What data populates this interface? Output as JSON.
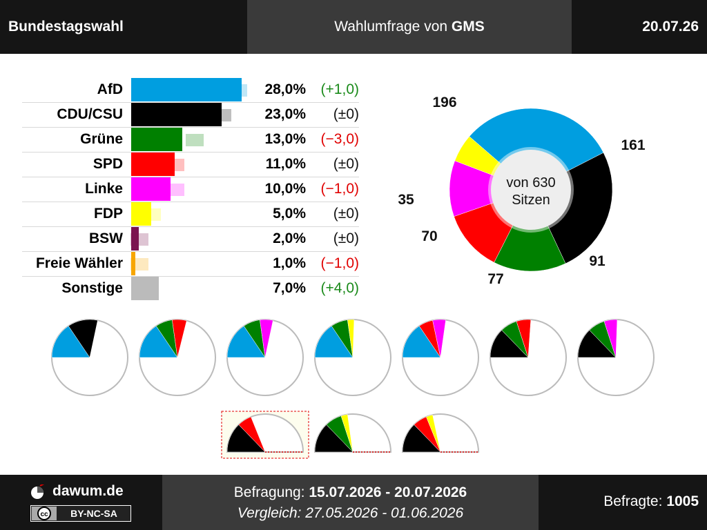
{
  "header": {
    "election": "Bundestagswahl",
    "title_prefix": "Wahlumfrage",
    "title_mid": " von ",
    "institute": "GMS",
    "date": "20.07.26"
  },
  "colors": {
    "AfD": "#009ee0",
    "CDU/CSU": "#000000",
    "Grüne": "#008000",
    "SPD": "#ff0000",
    "Linke": "#ff00ff",
    "FDP": "#ffff00",
    "BSW": "#7b1450",
    "Freie Wähler": "#f7a600",
    "Sonstige": "#bbbbbb"
  },
  "chart_data": [
    {
      "type": "bar",
      "categories": [
        "AfD",
        "CDU/CSU",
        "Grüne",
        "SPD",
        "Linke",
        "FDP",
        "BSW",
        "Freie Wähler",
        "Sonstige"
      ],
      "series": [
        {
          "name": "Umfrage",
          "values": [
            28.0,
            23.0,
            13.0,
            11.0,
            10.0,
            5.0,
            2.0,
            1.0,
            7.0
          ]
        },
        {
          "values": [
            27.0,
            23.0,
            16.0,
            11.0,
            11.0,
            5.0,
            2.0,
            2.0,
            3.0
          ]
        }
      ],
      "value_labels": [
        "28,0%",
        "23,0%",
        "13,0%",
        "11,0%",
        "10,0%",
        "5,0%",
        "2,0%",
        "1,0%",
        "7,0%"
      ],
      "diff_labels": [
        "(+1,0)",
        "(±0)",
        "(−3,0)",
        "(±0)",
        "(−1,0)",
        "(±0)",
        "(±0)",
        "(−1,0)",
        "(+4,0)"
      ],
      "diff_sign": [
        "pos",
        "zero",
        "neg",
        "zero",
        "neg",
        "zero",
        "zero",
        "neg",
        "pos"
      ]
    },
    {
      "type": "pie",
      "categories": [
        "AfD",
        "CDU/CSU",
        "Grüne",
        "SPD",
        "Linke",
        "FDP"
      ],
      "values": [
        196,
        161,
        91,
        77,
        70,
        35
      ],
      "labels": [
        "196",
        "161",
        "91",
        "77",
        "70",
        "35"
      ],
      "center_label_1": "von 630",
      "center_label_2": "Sitzen"
    }
  ],
  "coalitions": [
    {
      "parties": [
        "AfD",
        "CDU/CSU"
      ],
      "highlight": false
    },
    {
      "parties": [
        "AfD",
        "Grüne",
        "SPD"
      ],
      "highlight": false
    },
    {
      "parties": [
        "AfD",
        "Grüne",
        "Linke"
      ],
      "highlight": false
    },
    {
      "parties": [
        "AfD",
        "Grüne",
        "FDP"
      ],
      "highlight": false
    },
    {
      "parties": [
        "AfD",
        "SPD",
        "Linke"
      ],
      "highlight": false
    },
    {
      "parties": [
        "CDU/CSU",
        "Grüne",
        "SPD"
      ],
      "highlight": false
    },
    {
      "parties": [
        "CDU/CSU",
        "Grüne",
        "Linke"
      ],
      "highlight": false
    },
    {
      "parties": [
        "CDU/CSU",
        "SPD"
      ],
      "highlight": true
    },
    {
      "parties": [
        "CDU/CSU",
        "Grüne",
        "FDP"
      ],
      "highlight": false
    },
    {
      "parties": [
        "CDU/CSU",
        "SPD",
        "FDP"
      ],
      "highlight": false
    }
  ],
  "footer": {
    "brand": "dawum.de",
    "license": "BY-NC-SA",
    "survey_label": "Befragung: ",
    "survey_range": "15.07.2026 - 20.07.2026",
    "compare_label": "Vergleich: ",
    "compare_range": "27.05.2026 - 01.06.2026",
    "respondents_label": "Befragte: ",
    "respondents": "1005"
  }
}
